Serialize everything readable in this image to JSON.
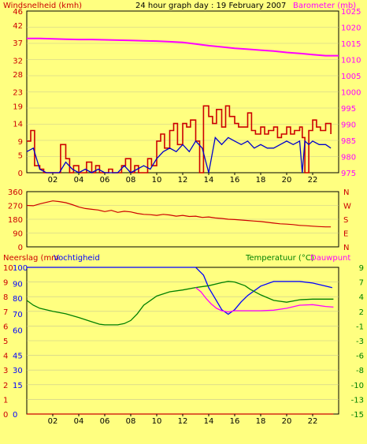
{
  "page": {
    "background": "#ffff80"
  },
  "chart_data": [
    {
      "id": "wind-baro",
      "type": "line",
      "title": "24 hour graph day : 19 February 2007",
      "left_axis_label": "Windsnelheid (kmh)",
      "right_axis_label": "Barometer (mb)",
      "x_ticks": [
        "02",
        "04",
        "06",
        "08",
        "10",
        "12",
        "14",
        "16",
        "18",
        "20",
        "22"
      ],
      "xlim": [
        0,
        24
      ],
      "left_ticks": [
        0,
        5,
        9,
        14,
        19,
        23,
        28,
        32,
        37,
        42,
        46
      ],
      "left_ylim": [
        0,
        46
      ],
      "right_ticks": [
        975,
        980,
        985,
        990,
        995,
        1000,
        1005,
        1010,
        1015,
        1020,
        1025
      ],
      "right_ylim": [
        975,
        1025
      ],
      "series": [
        {
          "axis": "right",
          "color": "#ff00ff",
          "x": [
            0,
            1,
            2,
            3,
            4,
            5,
            6,
            7,
            8,
            9,
            10,
            11,
            12,
            13,
            14,
            15,
            16,
            17,
            18,
            19,
            20,
            21,
            22,
            23,
            24
          ],
          "values": [
            1016.5,
            1016.5,
            1016.4,
            1016.3,
            1016.2,
            1016.2,
            1016.1,
            1016.0,
            1015.9,
            1015.8,
            1015.7,
            1015.5,
            1015.3,
            1014.8,
            1014.3,
            1013.9,
            1013.5,
            1013.2,
            1012.9,
            1012.6,
            1012.2,
            1011.9,
            1011.5,
            1011.2,
            1011.2
          ]
        },
        {
          "axis": "left",
          "color": "#cc0000",
          "x": [
            0,
            0.3,
            0.6,
            1,
            1.3,
            1.6,
            2,
            2.3,
            2.6,
            3,
            3.3,
            3.6,
            4,
            4.3,
            4.6,
            5,
            5.3,
            5.6,
            6,
            6.3,
            6.6,
            7,
            7.3,
            7.6,
            8,
            8.3,
            8.6,
            9,
            9.3,
            9.6,
            10,
            10.3,
            10.6,
            11,
            11.3,
            11.6,
            12,
            12.3,
            12.6,
            13,
            13.3,
            13.6,
            14,
            14.3,
            14.6,
            15,
            15.3,
            15.6,
            16,
            16.3,
            16.6,
            17,
            17.3,
            17.6,
            18,
            18.3,
            18.6,
            19,
            19.3,
            19.6,
            20,
            20.3,
            20.6,
            21,
            21.2,
            21.4,
            21.7,
            22,
            22.3,
            22.6,
            23,
            23.4
          ],
          "values": [
            9,
            12,
            2,
            1,
            0,
            0,
            0,
            0,
            8,
            4,
            0,
            2,
            0,
            0,
            3,
            0,
            2,
            0,
            0,
            1,
            0,
            0,
            2,
            4,
            0,
            2,
            0,
            0,
            4,
            2,
            9,
            11,
            7,
            12,
            14,
            8,
            14,
            13,
            15,
            9,
            0,
            19,
            16,
            14,
            18,
            13,
            19,
            16,
            14,
            13,
            13,
            17,
            12,
            11,
            13,
            11,
            12,
            13,
            10,
            11,
            13,
            11,
            12,
            13,
            10,
            0,
            12,
            15,
            13,
            12,
            14,
            11
          ]
        },
        {
          "axis": "left",
          "color": "#0000cc",
          "x": [
            0,
            0.5,
            1,
            1.5,
            2,
            2.5,
            3,
            3.5,
            4,
            4.5,
            5,
            5.5,
            6,
            6.5,
            7,
            7.5,
            8,
            8.5,
            9,
            9.5,
            10,
            10.5,
            11,
            11.5,
            12,
            12.5,
            13,
            13.5,
            14,
            14.5,
            15,
            15.5,
            16,
            16.5,
            17,
            17.5,
            18,
            18.5,
            19,
            19.5,
            20,
            20.5,
            21,
            21.2,
            21.4,
            21.7,
            22,
            22.5,
            23,
            23.4
          ],
          "values": [
            6,
            7,
            1,
            0,
            0,
            0,
            3,
            1,
            0,
            1,
            0,
            1,
            0,
            0,
            0,
            2,
            0,
            1,
            2,
            1,
            4,
            6,
            7,
            6,
            8,
            6,
            9,
            7,
            0,
            10,
            8,
            10,
            9,
            8,
            9,
            7,
            8,
            7,
            7,
            8,
            9,
            8,
            9,
            0,
            9,
            8,
            9,
            8,
            8,
            7
          ]
        }
      ]
    },
    {
      "id": "wind-direction",
      "type": "line",
      "left_ticks": [
        0,
        90,
        180,
        270,
        360
      ],
      "ylim": [
        0,
        360
      ],
      "right_labels": [
        "N",
        "W",
        "S",
        "E",
        "N"
      ],
      "xlim": [
        0,
        24
      ],
      "series": [
        {
          "axis": "left",
          "color": "#cc0000",
          "x": [
            0,
            0.5,
            1,
            1.5,
            2,
            2.5,
            3,
            3.5,
            4,
            4.5,
            5,
            5.5,
            6,
            6.5,
            7,
            7.5,
            8,
            8.5,
            9,
            9.5,
            10,
            10.5,
            11,
            11.5,
            12,
            12.5,
            13,
            13.5,
            14,
            14.5,
            15,
            15.5,
            16,
            16.5,
            17,
            17.5,
            18,
            18.5,
            19,
            19.5,
            20,
            20.5,
            21,
            21.5,
            22,
            22.5,
            23,
            23.4
          ],
          "values": [
            270,
            268,
            280,
            290,
            300,
            295,
            288,
            275,
            260,
            250,
            245,
            240,
            230,
            238,
            225,
            232,
            228,
            218,
            212,
            210,
            205,
            212,
            208,
            200,
            205,
            198,
            200,
            192,
            195,
            188,
            185,
            180,
            178,
            175,
            172,
            168,
            165,
            160,
            155,
            150,
            148,
            145,
            140,
            138,
            135,
            132,
            130,
            130
          ]
        }
      ]
    },
    {
      "id": "humidity-temp",
      "type": "line",
      "left_axis_label": "Neerslag (mm",
      "left_axis_label2": "Vochtigheid",
      "right_axis_label": "Temperatuur (°C)",
      "right_axis_label2": "Dauwpunt",
      "x_ticks": [
        "02",
        "04",
        "06",
        "08",
        "10",
        "12",
        "14",
        "16",
        "18",
        "20",
        "22"
      ],
      "xlim": [
        0,
        24
      ],
      "precip_ticks": [
        0,
        1,
        2,
        3,
        4,
        5,
        6,
        7,
        8,
        9,
        10
      ],
      "humidity_ticks": [
        0,
        15,
        30,
        45,
        60,
        70,
        80,
        90,
        100
      ],
      "temp_ticks": [
        9,
        7,
        4,
        2,
        -1,
        -3,
        -6,
        -8,
        -10,
        -13,
        -15
      ],
      "temp_ylim": [
        -15,
        9
      ],
      "series": [
        {
          "name": "Vochtigheid",
          "axis": "humidity",
          "color": "#0000ff",
          "x": [
            0,
            13,
            13.6,
            14,
            14.5,
            15,
            15.5,
            16,
            16.5,
            17,
            18,
            19,
            20,
            21,
            22,
            23,
            23.5
          ],
          "values": [
            100,
            100,
            95,
            87,
            80,
            73,
            70,
            73,
            78,
            82,
            88,
            91,
            91,
            91,
            90,
            88,
            87
          ]
        },
        {
          "name": "Temperatuur",
          "axis": "temp",
          "color": "#008000",
          "x": [
            0,
            0.5,
            1,
            2,
            3,
            4,
            5,
            5.6,
            6,
            7,
            7.5,
            8,
            8.5,
            9,
            10,
            11,
            12,
            13,
            14,
            15,
            15.5,
            16,
            16.8,
            17.2,
            18,
            19,
            20,
            21,
            22,
            23,
            23.6
          ],
          "values": [
            3.6,
            2.8,
            2.3,
            1.8,
            1.4,
            0.8,
            0.1,
            -0.3,
            -0.4,
            -0.4,
            -0.2,
            0.3,
            1.4,
            2.8,
            4.3,
            5.0,
            5.3,
            5.7,
            6.0,
            6.5,
            6.7,
            6.6,
            6.0,
            5.4,
            4.5,
            3.6,
            3.3,
            3.7,
            3.8,
            3.8,
            3.8
          ]
        },
        {
          "name": "Dauwpunt",
          "axis": "temp",
          "color": "#ff00ff",
          "x": [
            13,
            13.4,
            13.8,
            14.2,
            14.6,
            15,
            15.5,
            16,
            17,
            18,
            19,
            20,
            21,
            22,
            23,
            23.6
          ],
          "values": [
            5.7,
            5.0,
            3.9,
            3.0,
            2.3,
            1.9,
            1.7,
            1.9,
            1.9,
            1.9,
            2.0,
            2.3,
            2.8,
            2.9,
            2.6,
            2.5
          ]
        },
        {
          "name": "Neerslag",
          "axis": "precip",
          "color": "#cc0000",
          "x": [
            0,
            23.6
          ],
          "values": [
            0,
            0
          ]
        }
      ]
    }
  ]
}
